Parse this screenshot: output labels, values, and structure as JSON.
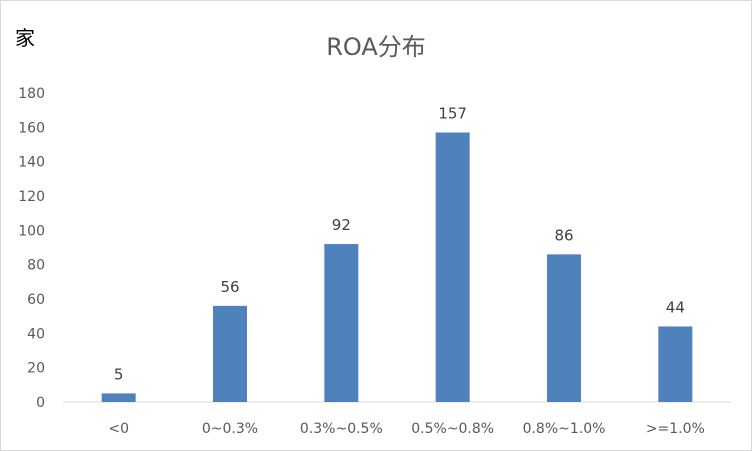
{
  "chart_data": {
    "type": "bar",
    "title": "ROA分布",
    "ylabel": "家",
    "xlabel": "",
    "categories": [
      "<0",
      "0~0.3%",
      "0.3%~0.5%",
      "0.5%~0.8%",
      "0.8%~1.0%",
      ">=1.0%"
    ],
    "values": [
      5,
      56,
      92,
      157,
      86,
      44
    ],
    "ylim": [
      0,
      180
    ],
    "yticks": [
      0,
      20,
      40,
      60,
      80,
      100,
      120,
      140,
      160,
      180
    ],
    "grid": false,
    "legend": "none",
    "data_labels": true,
    "bar_color": "#4f81bd"
  }
}
